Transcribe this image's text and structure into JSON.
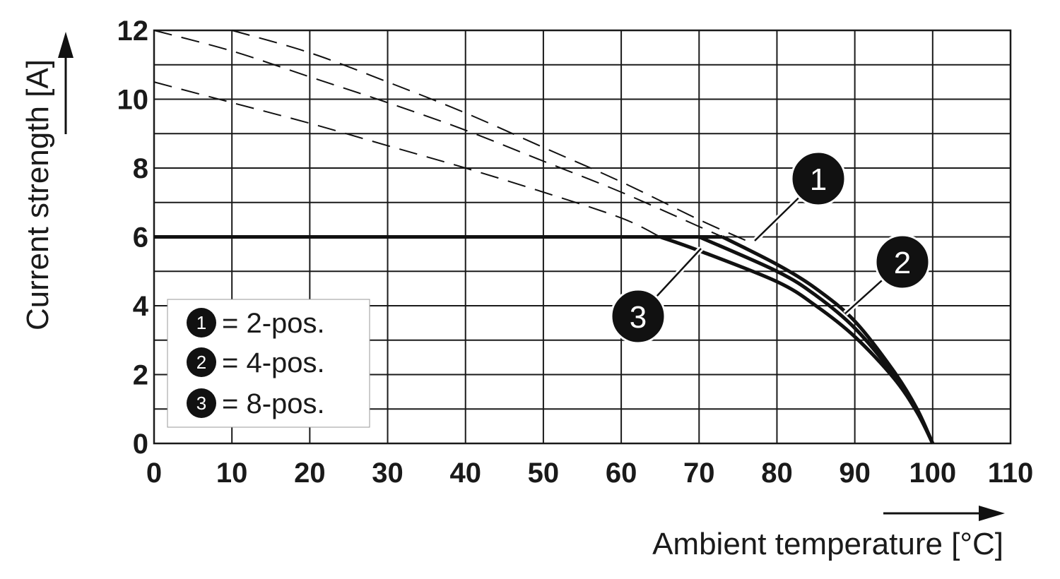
{
  "chart_data": {
    "type": "line",
    "xlabel": "Ambient temperature [°C]",
    "ylabel": "Current strength [A]",
    "xlim": [
      0,
      110
    ],
    "ylim": [
      0,
      12
    ],
    "x_ticks": [
      "0",
      "10",
      "20",
      "30",
      "40",
      "50",
      "60",
      "70",
      "80",
      "90",
      "100",
      "110"
    ],
    "y_ticks": [
      "0",
      "2",
      "4",
      "6",
      "8",
      "10",
      "12"
    ],
    "grid": true,
    "legend_placement": "bottom-left",
    "limit_line": {
      "y": 6,
      "x_start": 0
    },
    "series": [
      {
        "name": "2-pos.",
        "marker": "1",
        "solid": [
          [
            73,
            6
          ],
          [
            80,
            5.2
          ],
          [
            85,
            4.5
          ],
          [
            90,
            3.55
          ],
          [
            95,
            2.1
          ],
          [
            98,
            1.0
          ],
          [
            100,
            0
          ]
        ],
        "dashed": [
          [
            10,
            12
          ],
          [
            20,
            11.35
          ],
          [
            30,
            10.5
          ],
          [
            40,
            9.6
          ],
          [
            50,
            8.6
          ],
          [
            60,
            7.6
          ],
          [
            70,
            6.5
          ],
          [
            77,
            5.8
          ]
        ]
      },
      {
        "name": "4-pos.",
        "marker": "2",
        "solid": [
          [
            70,
            6
          ],
          [
            80,
            5.0
          ],
          [
            85,
            4.3
          ],
          [
            90,
            3.35
          ],
          [
            95,
            2.0
          ],
          [
            98,
            0.95
          ],
          [
            100,
            0
          ]
        ],
        "dashed": [
          [
            0,
            12
          ],
          [
            10,
            11.4
          ],
          [
            20,
            10.65
          ],
          [
            30,
            9.9
          ],
          [
            40,
            9.1
          ],
          [
            50,
            8.2
          ],
          [
            60,
            7.3
          ],
          [
            70,
            6.3
          ],
          [
            76,
            5.7
          ]
        ]
      },
      {
        "name": "8-pos.",
        "marker": "3",
        "solid": [
          [
            65,
            6
          ],
          [
            70,
            5.6
          ],
          [
            80,
            4.7
          ],
          [
            85,
            4.0
          ],
          [
            90,
            3.1
          ],
          [
            95,
            1.9
          ],
          [
            98,
            0.9
          ],
          [
            100,
            0
          ]
        ],
        "dashed": [
          [
            0,
            10.5
          ],
          [
            10,
            9.9
          ],
          [
            20,
            9.3
          ],
          [
            30,
            8.65
          ],
          [
            40,
            8.0
          ],
          [
            50,
            7.3
          ],
          [
            60,
            6.55
          ],
          [
            65,
            6.0
          ]
        ]
      }
    ],
    "legend": [
      {
        "marker": "1",
        "text": "= 2-pos."
      },
      {
        "marker": "2",
        "text": "= 4-pos."
      },
      {
        "marker": "3",
        "text": "= 8-pos."
      }
    ],
    "colors": {
      "line": "#111111",
      "grid": "#1a1a1a",
      "marker_fill": "#111111",
      "marker_text": "#ffffff"
    }
  }
}
